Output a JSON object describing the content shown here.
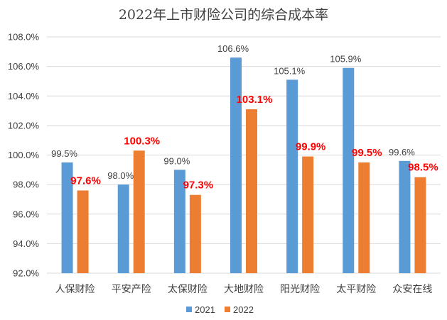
{
  "chart_data": {
    "type": "bar",
    "title": "2022年上市财险公司的综合成本率",
    "categories": [
      "人保财险",
      "平安产险",
      "太保财险",
      "大地财险",
      "阳光财险",
      "太平财险",
      "众安在线"
    ],
    "series": [
      {
        "name": "2021",
        "color": "#5b9bd5",
        "values": [
          99.5,
          98.0,
          99.0,
          106.6,
          105.1,
          105.9,
          99.6
        ],
        "labels": [
          "99.5%",
          "98.0%",
          "99.0%",
          "106.6%",
          "105.1%",
          "105.9%",
          "99.6%"
        ]
      },
      {
        "name": "2022",
        "color": "#ed7d31",
        "values": [
          97.6,
          100.3,
          97.3,
          103.1,
          99.9,
          99.5,
          98.5
        ],
        "labels": [
          "97.6%",
          "100.3%",
          "97.3%",
          "103.1%",
          "99.9%",
          "99.5%",
          "98.5%"
        ]
      }
    ],
    "ylim": [
      92,
      108
    ],
    "yticks": [
      "92.0%",
      "94.0%",
      "96.0%",
      "98.0%",
      "100.0%",
      "102.0%",
      "104.0%",
      "106.0%",
      "108.0%"
    ],
    "grid": true,
    "legend": "bottom",
    "label_colors": {
      "2021": "#404040",
      "2022": "#ff0000"
    }
  }
}
